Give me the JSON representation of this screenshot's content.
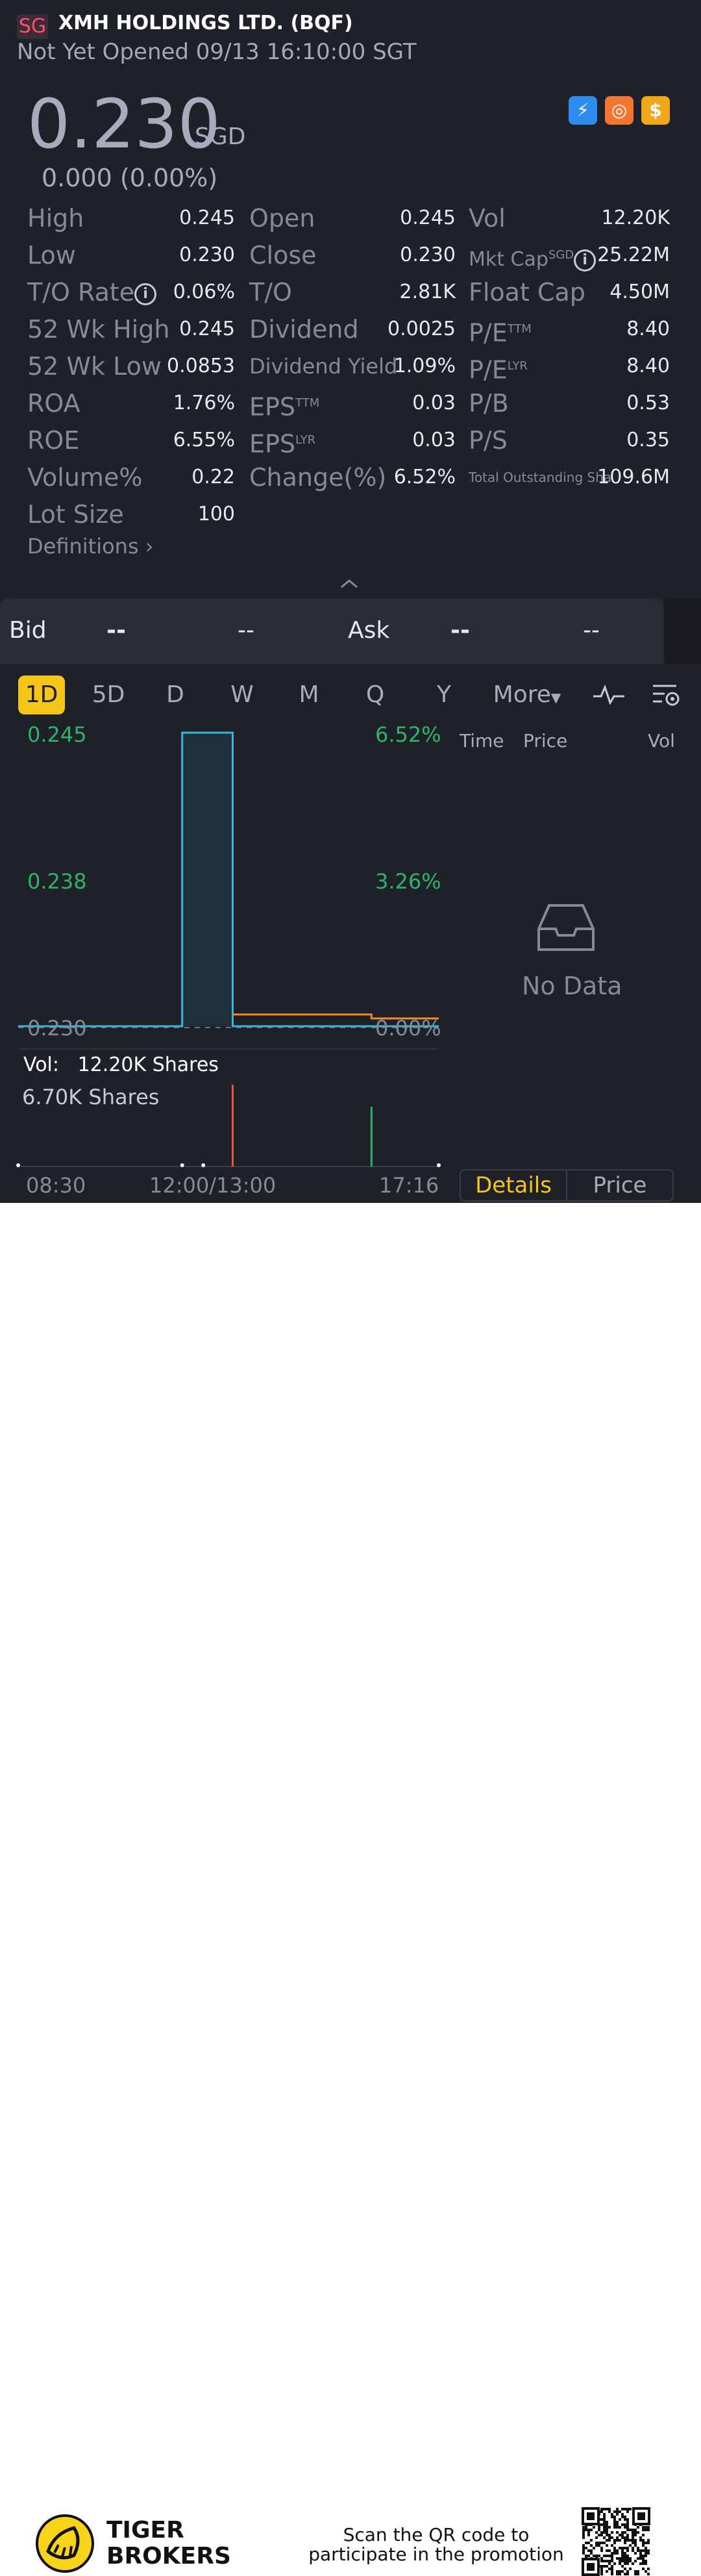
{
  "header": {
    "badge": "SG",
    "title": "XMH HOLDINGS LTD. (BQF)",
    "status": "Not Yet Opened 09/13 16:10:00 SGT"
  },
  "quote": {
    "price": "0.230",
    "currency": "SGD",
    "change": "0.000 (0.00%)"
  },
  "icons": [
    "flash-icon",
    "fund-icon",
    "dollar-icon"
  ],
  "stats": {
    "high": {
      "label": "High",
      "value": "0.245"
    },
    "open": {
      "label": "Open",
      "value": "0.245"
    },
    "vol": {
      "label": "Vol",
      "value": "12.20K"
    },
    "low": {
      "label": "Low",
      "value": "0.230"
    },
    "close": {
      "label": "Close",
      "value": "0.230"
    },
    "mktcap": {
      "label": "Mkt Cap",
      "sup": "SGD",
      "value": "25.22M"
    },
    "torate": {
      "label": "T/O Rate",
      "value": "0.06%"
    },
    "to": {
      "label": "T/O",
      "value": "2.81K"
    },
    "floatcap": {
      "label": "Float Cap",
      "value": "4.50M"
    },
    "wkhigh": {
      "label": "52 Wk High",
      "value": "0.245"
    },
    "dividend": {
      "label": "Dividend",
      "value": "0.0025"
    },
    "pettm": {
      "label": "P/E",
      "sup": "TTM",
      "value": "8.40"
    },
    "wklow": {
      "label": "52 Wk Low",
      "value": "0.0853"
    },
    "divyield": {
      "label": "Dividend Yield",
      "value": "1.09%"
    },
    "pelyr": {
      "label": "P/E",
      "sup": "LYR",
      "value": "8.40"
    },
    "roa": {
      "label": "ROA",
      "value": "1.76%"
    },
    "epsttm": {
      "label": "EPS",
      "sup": "TTM",
      "value": "0.03"
    },
    "pb": {
      "label": "P/B",
      "value": "0.53"
    },
    "roe": {
      "label": "ROE",
      "value": "6.55%"
    },
    "epslyr": {
      "label": "EPS",
      "sup": "LYR",
      "value": "0.03"
    },
    "ps": {
      "label": "P/S",
      "value": "0.35"
    },
    "volpct": {
      "label": "Volume%",
      "value": "0.22"
    },
    "changepct": {
      "label": "Change(%)",
      "value": "6.52%"
    },
    "outstanding": {
      "label": "Total Outstanding Sha",
      "value": "109.6M"
    },
    "lot": {
      "label": "Lot Size",
      "value": "100"
    }
  },
  "definitions": "Definitions",
  "bidask": {
    "bid": "Bid",
    "bid_price": "-- ",
    "bid_vol": "--",
    "ask": "Ask",
    "ask_price": "-- ",
    "ask_vol": "--"
  },
  "tabs": [
    "1D",
    "5D",
    "D",
    "W",
    "M",
    "Q",
    "Y",
    "More"
  ],
  "trades": {
    "time": "Time",
    "price": "Price",
    "vol": "Vol",
    "empty": "No Data"
  },
  "chart_data": {
    "type": "line",
    "y_left_ticks": [
      "0.245",
      "0.238",
      "0.230"
    ],
    "y_right_ticks": [
      "6.52%",
      "3.26%",
      "0.00%"
    ],
    "ylim": [
      0.23,
      0.245
    ],
    "x_ticks": [
      "08:30",
      "12:00/13:00",
      "17:16"
    ],
    "price_series": [
      {
        "x": 0,
        "y": 0.23
      },
      {
        "x": 0.39,
        "y": 0.23
      },
      {
        "x": 0.39,
        "y": 0.245
      },
      {
        "x": 0.51,
        "y": 0.245
      },
      {
        "x": 0.51,
        "y": 0.23
      },
      {
        "x": 1,
        "y": 0.23
      }
    ],
    "avg_series": [
      {
        "x": 0.51,
        "y": 0.2306
      },
      {
        "x": 0.84,
        "y": 0.2306
      },
      {
        "x": 0.84,
        "y": 0.2304
      },
      {
        "x": 1,
        "y": 0.2304
      }
    ],
    "volume_label": "Vol:",
    "volume_total": "12.20K Shares",
    "volume_max": "6.70K Shares",
    "volume_bars": [
      {
        "x": 0.0,
        "v": 0.1
      },
      {
        "x": 0.39,
        "v": 0.3
      },
      {
        "x": 0.44,
        "v": 0.2
      },
      {
        "x": 0.51,
        "v": 6.7
      },
      {
        "x": 0.84,
        "v": 4.9
      },
      {
        "x": 1,
        "v": 0.2
      }
    ],
    "colors": {
      "price": "#3ab4d8",
      "avg": "#f08a24",
      "up": "#2fb36b",
      "down": "#e8524a"
    }
  },
  "segments": {
    "details": "Details",
    "price": "Price"
  },
  "footer": {
    "brand_line1": "TIGER",
    "brand_line2": "BROKERS",
    "promo": "Scan the QR code to participate in the promotion"
  }
}
